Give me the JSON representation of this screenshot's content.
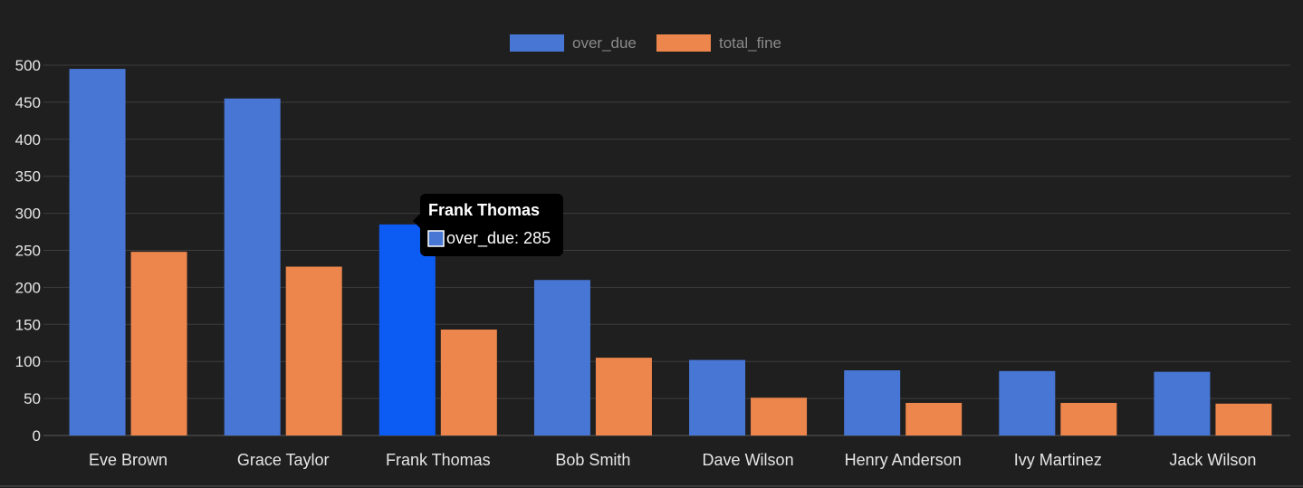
{
  "chart_data": {
    "type": "bar",
    "categories": [
      "Eve Brown",
      "Grace Taylor",
      "Frank Thomas",
      "Bob Smith",
      "Dave Wilson",
      "Henry Anderson",
      "Ivy Martinez",
      "Jack Wilson"
    ],
    "series": [
      {
        "name": "over_due",
        "values": [
          495,
          455,
          285,
          210,
          102,
          88,
          87,
          86
        ],
        "color": "#4876d5"
      },
      {
        "name": "total_fine",
        "values": [
          248,
          228,
          143,
          105,
          51,
          44,
          44,
          43
        ],
        "color": "#ed864c"
      }
    ],
    "ylim": [
      0,
      500
    ],
    "y_ticks": [
      0,
      50,
      100,
      150,
      200,
      250,
      300,
      350,
      400,
      450,
      500
    ],
    "grid": true,
    "legend_position": "top-center",
    "highlight_color": "#0c5bf2",
    "background_color": "#1f1f1f",
    "tooltip": {
      "title": "Frank Thomas",
      "body": "over_due: 285",
      "category_index": 2,
      "series_index": 0
    }
  }
}
